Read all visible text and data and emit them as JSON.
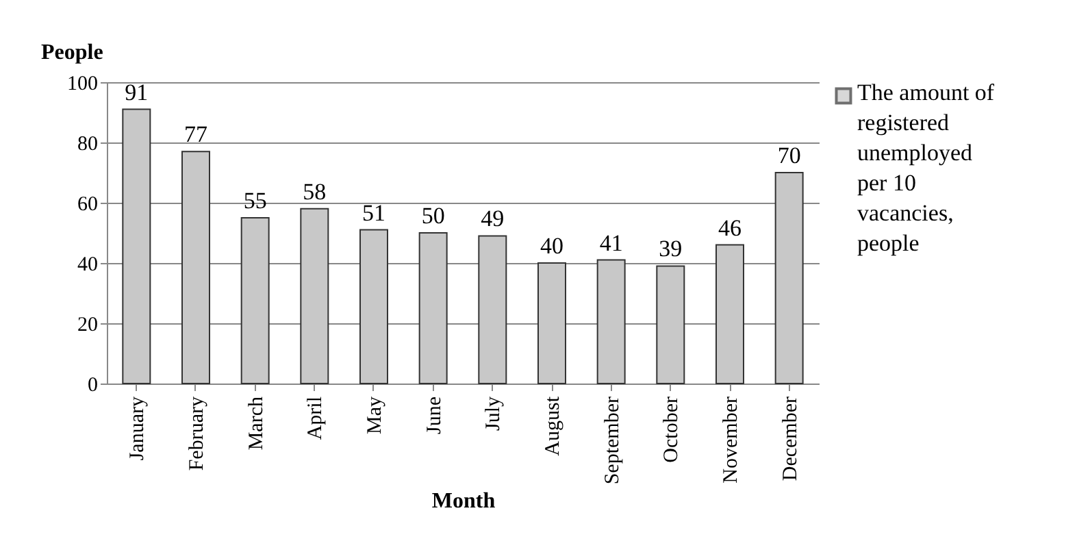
{
  "chart_data": {
    "type": "bar",
    "ylabel": "People",
    "xlabel": "Month",
    "categories": [
      "January",
      "February",
      "March",
      "April",
      "May",
      "June",
      "July",
      "August",
      "September",
      "October",
      "November",
      "December"
    ],
    "series": [
      {
        "name": "The amount of registered unemployed per 10 vacancies, people",
        "color": "#c8c8c8",
        "values": [
          91,
          77,
          55,
          58,
          51,
          50,
          49,
          40,
          41,
          39,
          46,
          70
        ]
      }
    ],
    "ylim": [
      0,
      100
    ],
    "yticks": [
      0,
      20,
      40,
      60,
      80,
      100
    ],
    "grid": "y",
    "legend": "right",
    "data_labels": true
  }
}
